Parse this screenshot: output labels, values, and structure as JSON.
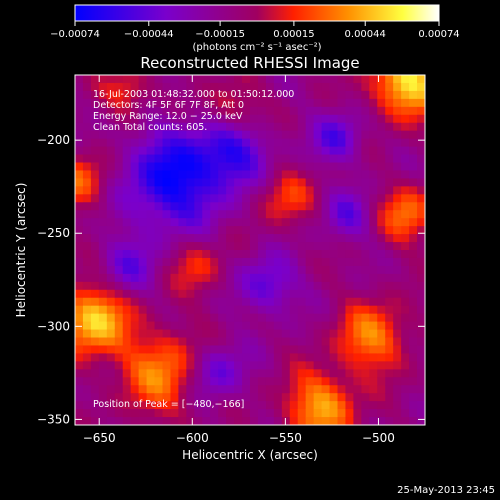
{
  "chart_data": {
    "type": "heatmap",
    "title": "Reconstructed RHESSI Image",
    "xlabel": "Heliocentric X (arcsec)",
    "ylabel": "Heliocentric Y (arcsec)",
    "xlim": [
      -663,
      -475
    ],
    "ylim": [
      -353,
      -165
    ],
    "x_ticks": [
      -650,
      -600,
      -550,
      -500
    ],
    "y_ticks": [
      -200,
      -250,
      -300,
      -350
    ],
    "tick_labels_x": [
      "−650",
      "−600",
      "−550",
      "−500"
    ],
    "tick_labels_y": [
      "−200",
      "−250",
      "−300",
      "−350"
    ],
    "colorbar": {
      "min": -0.00074,
      "max": 0.00074,
      "ticks": [
        -0.00074,
        -0.00044,
        -0.00015,
        0.00015,
        0.00044,
        0.00074
      ],
      "tick_labels": [
        "−0.00074",
        "−0.00044",
        "−0.00015",
        "0.00015",
        "0.00044",
        "0.00074"
      ],
      "unit_label": "(photons cm⁻² s⁻¹ asec⁻²)",
      "colors": [
        "#0000ff",
        "#7a00cc",
        "#c0003a",
        "#ff2000",
        "#ff9000",
        "#ffff40",
        "#ffffff"
      ]
    },
    "annotations": {
      "time": "16-Jul-2003 01:48:32.000 to 01:50:12.000",
      "detectors": "Detectors: 4F 5F 6F 7F 8F, Att 0",
      "energy": "Energy Range: 12.0 − 25.0 keV",
      "clean": "Clean    Total counts: 605.",
      "peak": "Position of Peak = [−480,−166]"
    },
    "peak_position": [
      -480,
      -166
    ],
    "grid": false
  },
  "footer": {
    "timestamp": "25-May-2013 23:45"
  }
}
